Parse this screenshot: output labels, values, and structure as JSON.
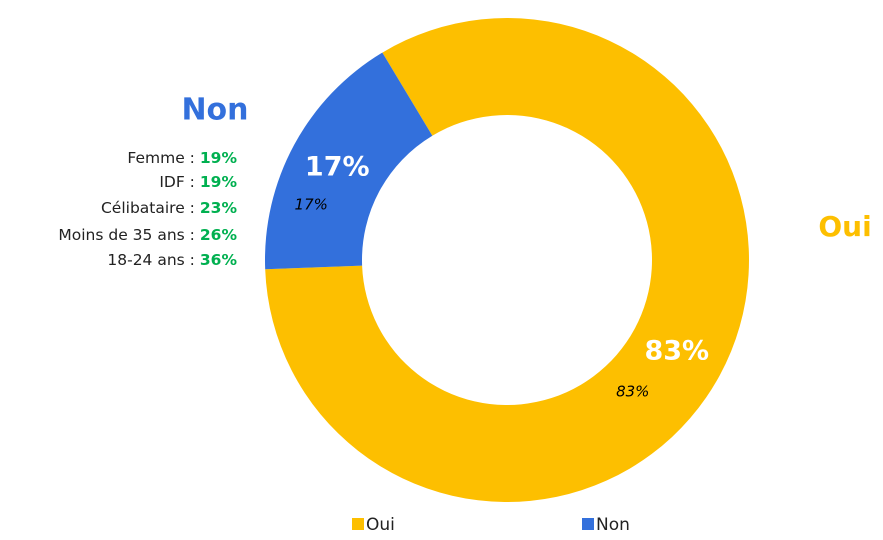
{
  "chart_data": {
    "type": "donut",
    "categories": [
      "Oui",
      "Non"
    ],
    "values": [
      83,
      17
    ],
    "value_labels": [
      "83%",
      "17%"
    ],
    "colors": [
      "#FDBF00",
      "#3370DC"
    ],
    "legend": "bottom",
    "annotations": {
      "non_title": "Non",
      "oui_title": "Oui",
      "non_breakdown": [
        {
          "label": "Femme :",
          "value": "19%"
        },
        {
          "label": "IDF :",
          "value": "19%"
        },
        {
          "label": "Célibataire :",
          "value": "23%"
        },
        {
          "label": "Moins de 35 ans :",
          "value": "26%"
        },
        {
          "label": "18-24 ans :",
          "value": "36%"
        }
      ]
    }
  }
}
